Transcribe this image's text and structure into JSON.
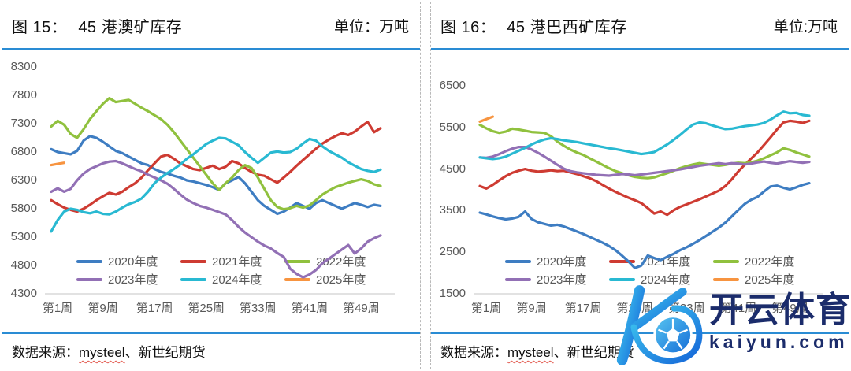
{
  "panels": [
    {
      "figure_label": "图 15：",
      "title": "45 港澳矿库存",
      "unit": "单位：万吨",
      "source_prefix": "数据来源：",
      "source_highlight": "mysteel",
      "source_suffix": "、新世纪期货"
    },
    {
      "figure_label": "图 16：",
      "title": "45 港巴西矿库存",
      "unit": "单位:万吨",
      "source_prefix": "数据来源：",
      "source_highlight": "mysteel",
      "source_suffix": "、新世纪期货"
    }
  ],
  "watermark": {
    "brand_cn": "开云体育",
    "brand_url": "kaiyun.com",
    "color": "#1b2c6b"
  },
  "colors": {
    "rule_blue": "#2a8cd4",
    "axis_line": "#d9d9d9",
    "tick_text": "#595959",
    "series": {
      "2020": "#3e7dc2",
      "2021": "#ce3b32",
      "2022": "#90c13e",
      "2023": "#9270b5",
      "2024": "#29b9d2",
      "2025": "#f79440"
    }
  },
  "chart_data": [
    {
      "type": "line",
      "title": "45 港澳矿库存",
      "ylabel": "万吨",
      "ylim": [
        4300,
        8300
      ],
      "yticks": [
        8300,
        7800,
        7300,
        6800,
        6300,
        5800,
        5300,
        4800,
        4300
      ],
      "plot_top_pad": 2,
      "grid": false,
      "legend_position": "bottom-inside",
      "x_tick_weeks": [
        1,
        9,
        17,
        25,
        33,
        41,
        49
      ],
      "x_tick_labels": [
        "第1周",
        "第9周",
        "第17周",
        "第25周",
        "第33周",
        "第41周",
        "第49周"
      ],
      "series": [
        {
          "name": "2020年度",
          "color": "#3e7dc2",
          "values": [
            6850,
            6800,
            6780,
            6760,
            6820,
            7000,
            7080,
            7050,
            6980,
            6900,
            6820,
            6780,
            6720,
            6660,
            6600,
            6570,
            6500,
            6450,
            6420,
            6380,
            6350,
            6300,
            6280,
            6250,
            6220,
            6180,
            6130,
            6250,
            6300,
            6360,
            6250,
            6100,
            5950,
            5850,
            5780,
            5710,
            5750,
            5820,
            5900,
            5850,
            5800,
            5900,
            5950,
            5900,
            5850,
            5800,
            5850,
            5900,
            5870,
            5830,
            5870,
            5850
          ]
        },
        {
          "name": "2021年度",
          "color": "#ce3b32",
          "values": [
            5950,
            5880,
            5820,
            5780,
            5750,
            5800,
            5870,
            5950,
            6020,
            6080,
            6050,
            6100,
            6180,
            6250,
            6350,
            6480,
            6600,
            6720,
            6750,
            6680,
            6600,
            6550,
            6500,
            6480,
            6520,
            6560,
            6500,
            6540,
            6640,
            6600,
            6520,
            6450,
            6400,
            6380,
            6320,
            6260,
            6350,
            6450,
            6560,
            6660,
            6760,
            6860,
            6950,
            7020,
            7080,
            7130,
            7100,
            7160,
            7250,
            7330,
            7150,
            7220
          ]
        },
        {
          "name": "2022年度",
          "color": "#90c13e",
          "values": [
            7250,
            7350,
            7280,
            7120,
            7050,
            7200,
            7380,
            7520,
            7650,
            7750,
            7680,
            7700,
            7720,
            7650,
            7580,
            7520,
            7450,
            7380,
            7280,
            7150,
            7000,
            6850,
            6700,
            6550,
            6400,
            6250,
            6130,
            6250,
            6350,
            6480,
            6570,
            6520,
            6350,
            6150,
            5950,
            5830,
            5790,
            5810,
            5850,
            5820,
            5860,
            5950,
            6050,
            6120,
            6180,
            6220,
            6260,
            6290,
            6320,
            6290,
            6230,
            6200
          ]
        },
        {
          "name": "2023年度",
          "color": "#9270b5",
          "values": [
            6100,
            6160,
            6100,
            6150,
            6300,
            6420,
            6500,
            6550,
            6600,
            6630,
            6640,
            6600,
            6550,
            6500,
            6460,
            6400,
            6350,
            6300,
            6240,
            6150,
            6050,
            5960,
            5900,
            5850,
            5820,
            5780,
            5740,
            5700,
            5600,
            5480,
            5380,
            5300,
            5220,
            5150,
            5100,
            5020,
            4950,
            4740,
            4650,
            4590,
            4640,
            4720,
            4840,
            4920,
            5000,
            5080,
            5160,
            5010,
            5100,
            5220,
            5280,
            5330
          ]
        },
        {
          "name": "2024年度",
          "color": "#29b9d2",
          "values": [
            5400,
            5600,
            5750,
            5800,
            5780,
            5740,
            5720,
            5750,
            5710,
            5700,
            5750,
            5820,
            5880,
            5920,
            5980,
            6100,
            6250,
            6350,
            6430,
            6500,
            6580,
            6680,
            6760,
            6850,
            6940,
            7000,
            7050,
            7040,
            6980,
            6920,
            6800,
            6700,
            6610,
            6700,
            6790,
            6810,
            6790,
            6800,
            6860,
            6950,
            7030,
            7000,
            6900,
            6820,
            6760,
            6700,
            6620,
            6560,
            6500,
            6470,
            6450,
            6490
          ]
        },
        {
          "name": "2025年度",
          "color": "#f79440",
          "values": [
            6570,
            6590,
            6610
          ]
        }
      ]
    },
    {
      "type": "line",
      "title": "45 港巴西矿库存",
      "ylabel": "万吨",
      "ylim": [
        1500,
        6500
      ],
      "yticks": [
        6500,
        5500,
        4500,
        3500,
        2500,
        1500
      ],
      "plot_top_pad": 26,
      "grid": false,
      "legend_position": "bottom-inside",
      "x_tick_weeks": [
        1,
        9,
        17,
        25,
        33,
        41,
        49
      ],
      "x_tick_labels": [
        "第1周",
        "第9周",
        "第17周",
        "第25周",
        "第33周",
        "第41周",
        "第49周"
      ],
      "series": [
        {
          "name": "2020年度",
          "color": "#3e7dc2",
          "values": [
            3450,
            3410,
            3360,
            3320,
            3290,
            3310,
            3350,
            3480,
            3300,
            3220,
            3180,
            3140,
            3160,
            3120,
            3060,
            3000,
            2940,
            2870,
            2800,
            2730,
            2650,
            2550,
            2420,
            2280,
            2120,
            2180,
            2420,
            2360,
            2310,
            2390,
            2460,
            2550,
            2620,
            2700,
            2790,
            2890,
            2990,
            3090,
            3210,
            3360,
            3510,
            3660,
            3760,
            3830,
            3960,
            4080,
            4100,
            4050,
            4010,
            4060,
            4120,
            4160
          ]
        },
        {
          "name": "2021年度",
          "color": "#ce3b32",
          "values": [
            4090,
            4030,
            4120,
            4230,
            4330,
            4410,
            4460,
            4500,
            4460,
            4440,
            4450,
            4470,
            4450,
            4460,
            4420,
            4380,
            4330,
            4280,
            4210,
            4120,
            4030,
            3950,
            3880,
            3810,
            3750,
            3680,
            3560,
            3430,
            3480,
            3400,
            3510,
            3590,
            3650,
            3710,
            3770,
            3840,
            3910,
            3980,
            4090,
            4250,
            4440,
            4600,
            4750,
            4900,
            5080,
            5260,
            5450,
            5620,
            5660,
            5640,
            5610,
            5660
          ]
        },
        {
          "name": "2022年度",
          "color": "#90c13e",
          "values": [
            5560,
            5480,
            5410,
            5370,
            5400,
            5470,
            5450,
            5420,
            5390,
            5380,
            5370,
            5290,
            5160,
            5060,
            4970,
            4900,
            4840,
            4760,
            4680,
            4600,
            4520,
            4450,
            4400,
            4350,
            4310,
            4290,
            4280,
            4300,
            4350,
            4400,
            4460,
            4520,
            4570,
            4610,
            4640,
            4620,
            4600,
            4580,
            4600,
            4630,
            4650,
            4640,
            4660,
            4700,
            4760,
            4830,
            4900,
            5000,
            4960,
            4900,
            4850,
            4800
          ]
        },
        {
          "name": "2023年度",
          "color": "#9270b5",
          "values": [
            4780,
            4770,
            4800,
            4860,
            4930,
            4990,
            5030,
            5030,
            4970,
            4890,
            4800,
            4700,
            4600,
            4510,
            4450,
            4420,
            4400,
            4380,
            4360,
            4350,
            4340,
            4360,
            4380,
            4370,
            4350,
            4370,
            4390,
            4410,
            4430,
            4450,
            4470,
            4490,
            4520,
            4550,
            4580,
            4600,
            4620,
            4640,
            4620,
            4640,
            4630,
            4610,
            4630,
            4660,
            4680,
            4650,
            4630,
            4660,
            4690,
            4670,
            4650,
            4670
          ]
        },
        {
          "name": "2024年度",
          "color": "#29b9d2",
          "values": [
            4780,
            4760,
            4740,
            4760,
            4800,
            4870,
            4940,
            5010,
            5090,
            5160,
            5210,
            5240,
            5220,
            5190,
            5170,
            5150,
            5120,
            5090,
            5060,
            5030,
            5000,
            4980,
            4950,
            4920,
            4890,
            4860,
            4880,
            4910,
            5000,
            5090,
            5200,
            5320,
            5450,
            5570,
            5620,
            5600,
            5550,
            5500,
            5460,
            5470,
            5500,
            5530,
            5550,
            5570,
            5610,
            5690,
            5790,
            5880,
            5840,
            5850,
            5800,
            5780
          ]
        },
        {
          "name": "2025年度",
          "color": "#f79440",
          "values": [
            5640,
            5700,
            5760
          ]
        }
      ]
    }
  ]
}
